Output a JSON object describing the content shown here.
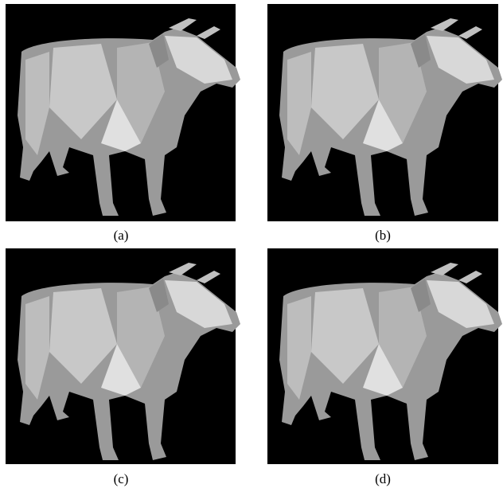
{
  "figure": {
    "panels": [
      {
        "caption": "(a)"
      },
      {
        "caption": "(b)"
      },
      {
        "caption": "(c)"
      },
      {
        "caption": "(d)"
      }
    ]
  }
}
